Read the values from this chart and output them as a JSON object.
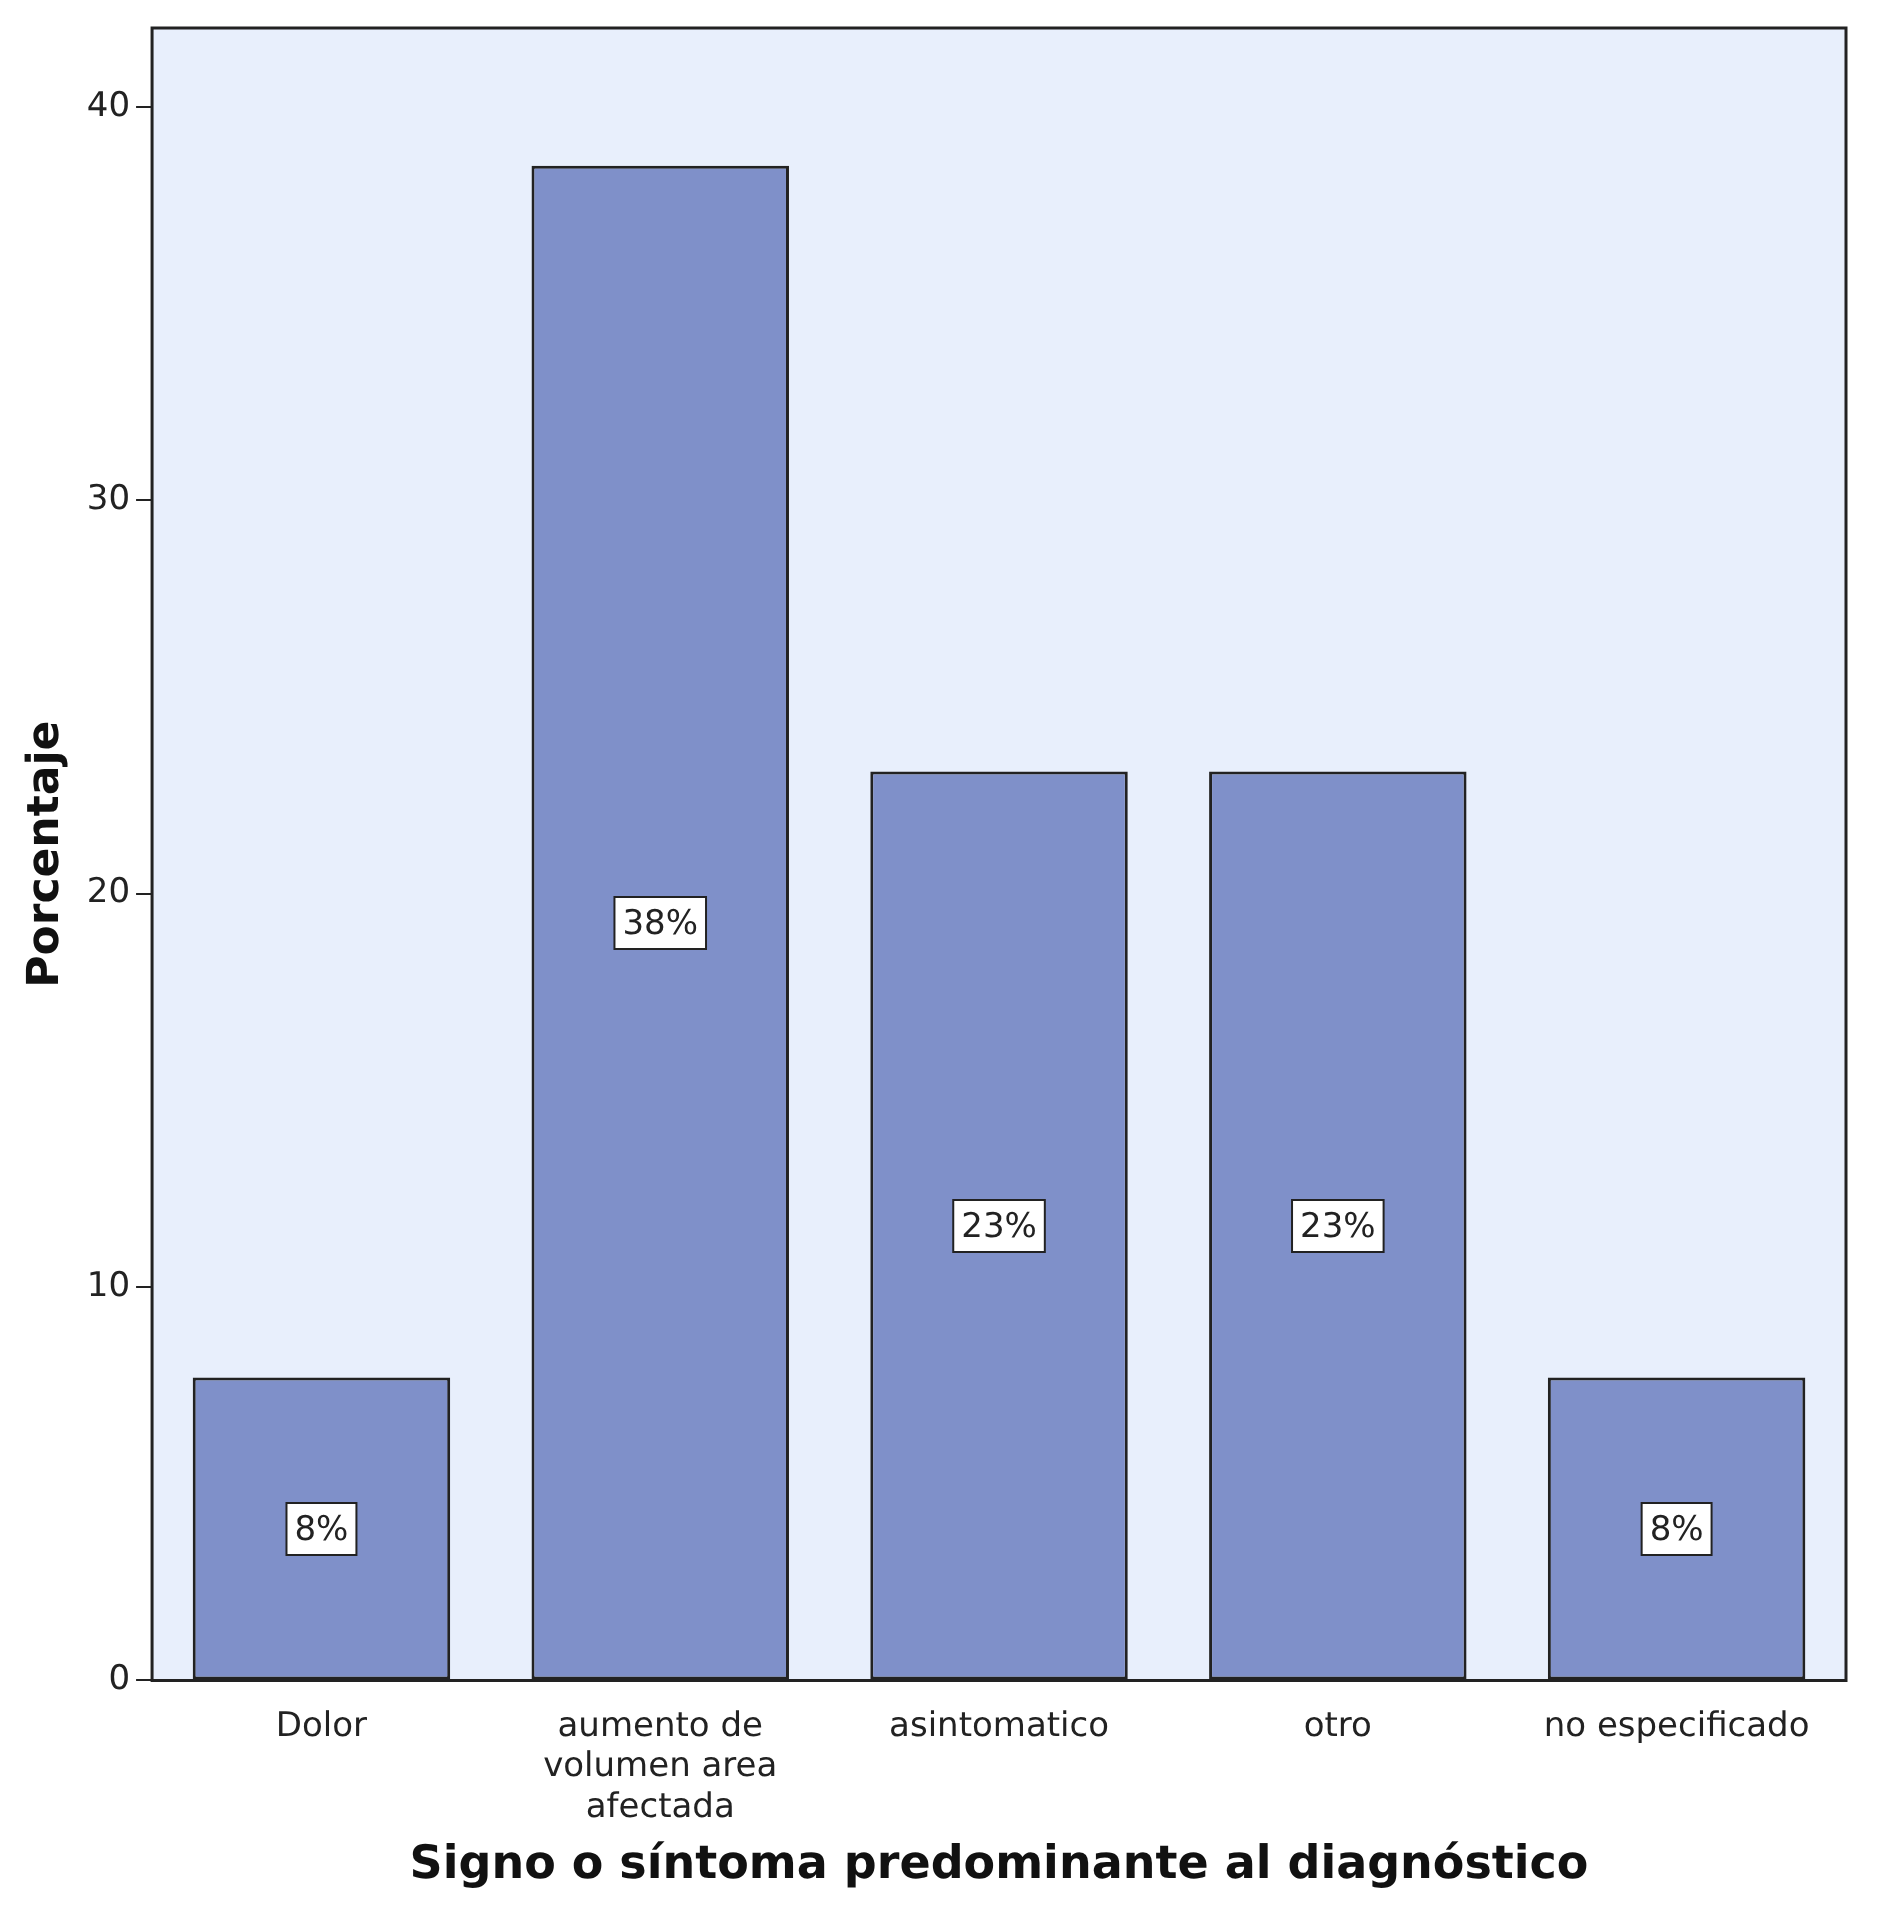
{
  "chart_data": {
    "type": "bar",
    "xlabel": "Signo o síntoma predominante al diagnóstico",
    "ylabel": "Porcentaje",
    "categories": [
      "Dolor",
      "aumento de volumen area afectada",
      "asintomatico",
      "otro",
      "no especificado"
    ],
    "values": [
      7.7,
      38.5,
      23.1,
      23.1,
      7.7
    ],
    "value_labels": [
      "8%",
      "38%",
      "23%",
      "23%",
      "8%"
    ],
    "color": "#7f90c9",
    "ylim": [
      0,
      42
    ],
    "yticks": [
      0,
      10,
      20,
      30,
      40
    ],
    "grid": false,
    "legend": false
  }
}
